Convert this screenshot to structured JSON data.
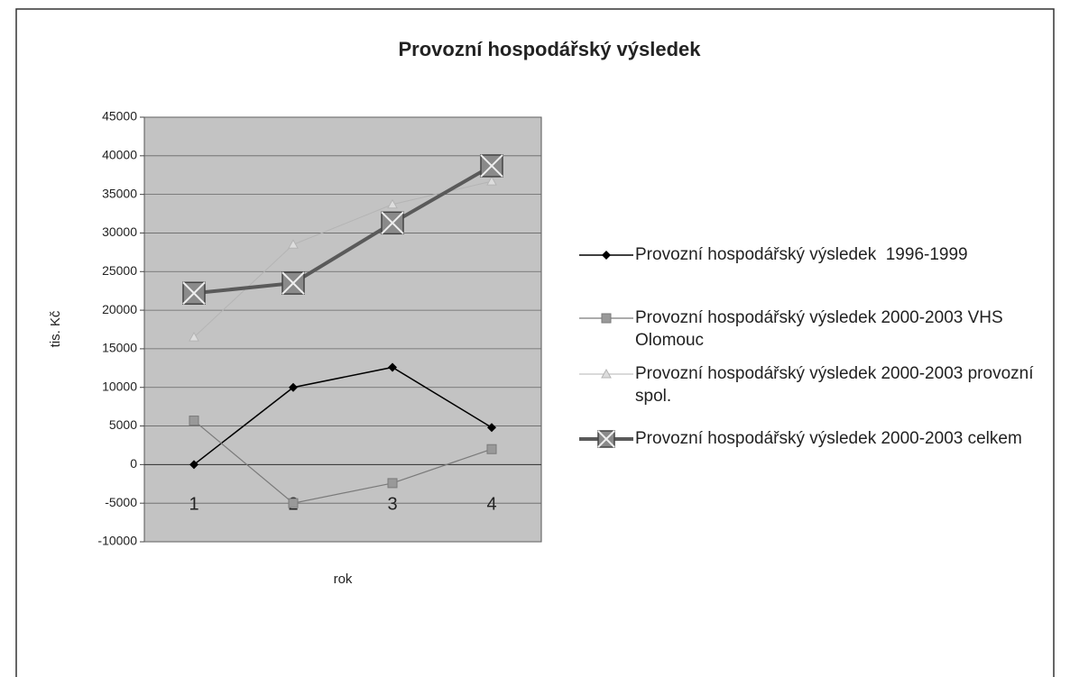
{
  "chart_data": {
    "type": "line",
    "title": "Provozní hospodářský výsledek",
    "ylabel": "tis. Kč",
    "xlabel": "rok",
    "categories": [
      "1",
      "2",
      "3",
      "4"
    ],
    "ylim": [
      -10000,
      45000
    ],
    "yticks": [
      -10000,
      -5000,
      0,
      5000,
      10000,
      15000,
      20000,
      25000,
      30000,
      35000,
      40000,
      45000
    ],
    "grid": true,
    "legend": "right",
    "series": [
      {
        "name": "Provozní hospodářský výsledek  1996-1999",
        "color": "#000000",
        "marker": "diamond",
        "values": [
          0,
          10000,
          12600,
          4800
        ]
      },
      {
        "name": "Provozní hospodářský výsledek 2000-2003 VHS Olomouc",
        "color": "#7a7a7a",
        "marker": "square",
        "values": [
          5700,
          -5000,
          -2400,
          2000
        ]
      },
      {
        "name": "Provozní hospodářský výsledek 2000-2003 provozní spol.",
        "color": "#b4b4b4",
        "marker": "triangle",
        "values": [
          16500,
          28500,
          33700,
          36700
        ]
      },
      {
        "name": "Provozní hospodářský výsledek 2000-2003 celkem",
        "color": "#5a5a5a",
        "marker": "xsquare",
        "values": [
          22200,
          23500,
          31300,
          38700
        ]
      }
    ]
  }
}
